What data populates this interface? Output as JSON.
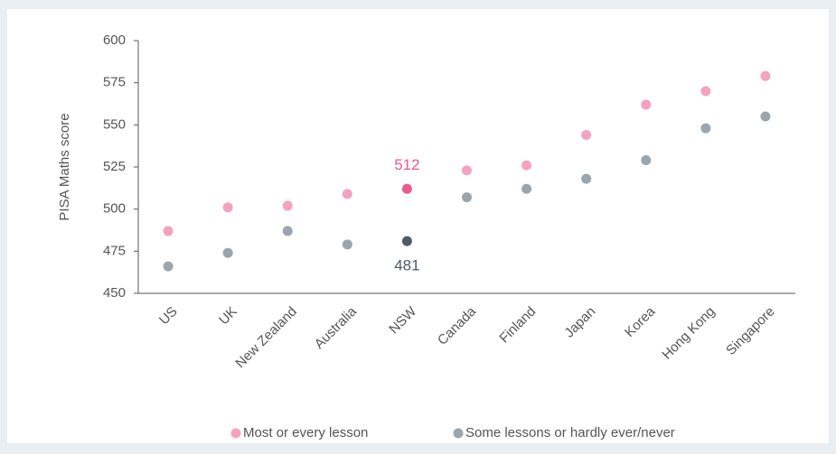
{
  "chart_data": {
    "type": "dot",
    "y_label": "PISA Maths score",
    "categories": [
      "US",
      "UK",
      "New Zealand",
      "Australia",
      "NSW",
      "Canada",
      "Finland",
      "Japan",
      "Korea",
      "Hong Kong",
      "Singapore"
    ],
    "series": [
      {
        "name": "Most or every lesson",
        "color": "#f4a3bc",
        "highlight_color": "#e95b8d",
        "values": [
          487,
          501,
          502,
          509,
          512,
          523,
          526,
          544,
          562,
          570,
          579
        ]
      },
      {
        "name": "Some lessons or hardly ever/never",
        "color": "#9ba5ae",
        "highlight_color": "#4e5b68",
        "values": [
          466,
          474,
          487,
          479,
          481,
          507,
          512,
          518,
          529,
          548,
          555
        ]
      }
    ],
    "highlight": "NSW",
    "ylim": [
      450,
      600
    ],
    "yticks": [
      450,
      475,
      500,
      525,
      550,
      575,
      600
    ],
    "legend": "bottom"
  }
}
